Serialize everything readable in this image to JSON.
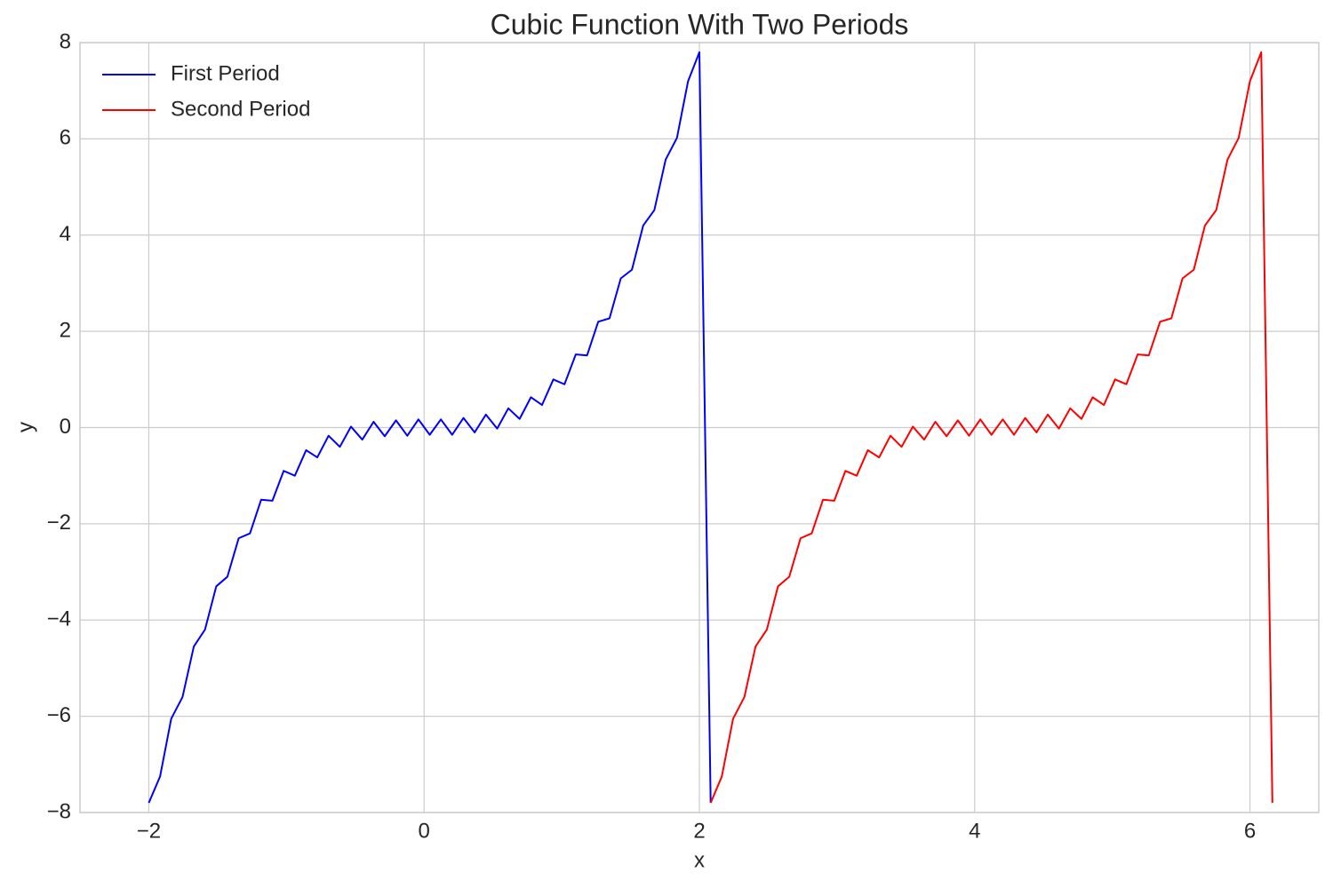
{
  "chart_data": {
    "type": "line",
    "title": "Cubic Function With Two Periods",
    "xlabel": "x",
    "ylabel": "y",
    "xlim": [
      -2.5,
      6.5
    ],
    "xticks": [
      {
        "value": -2,
        "label": "−2"
      },
      0,
      2,
      4,
      6
    ],
    "ylim": [
      -8,
      8
    ],
    "yticks": [
      {
        "value": -8,
        "label": "−8"
      },
      {
        "value": -6,
        "label": "−6"
      },
      {
        "value": -4,
        "label": "−4"
      },
      {
        "value": -2,
        "label": "−2"
      },
      0,
      2,
      4,
      6,
      8
    ],
    "grid": true,
    "legend": "upper left",
    "series": [
      {
        "name": "First Period",
        "color": "#0000ff",
        "x": [
          -2,
          -1.918,
          -1.837,
          -1.755,
          -1.673,
          -1.592,
          -1.51,
          -1.429,
          -1.347,
          -1.265,
          -1.184,
          -1.102,
          -1.02,
          -0.939,
          -0.857,
          -0.776,
          -0.694,
          -0.612,
          -0.531,
          -0.449,
          -0.367,
          -0.286,
          -0.204,
          -0.122,
          -0.041,
          0.041,
          0.122,
          0.204,
          0.286,
          0.367,
          0.449,
          0.531,
          0.612,
          0.694,
          0.776,
          0.857,
          0.939,
          1.02,
          1.102,
          1.184,
          1.265,
          1.347,
          1.429,
          1.51,
          1.592,
          1.673,
          1.755,
          1.837,
          1.918,
          2,
          2.082
        ],
        "values": [
          -7.8,
          -7.25,
          -6.05,
          -5.6,
          -4.55,
          -4.2,
          -3.3,
          -3.1,
          -2.3,
          -2.2,
          -1.5,
          -1.52,
          -0.9,
          -1.0,
          -0.47,
          -0.62,
          -0.17,
          -0.4,
          0.02,
          -0.25,
          0.12,
          -0.18,
          0.15,
          -0.17,
          0.17,
          -0.15,
          0.17,
          -0.15,
          0.2,
          -0.1,
          0.27,
          -0.02,
          0.4,
          0.18,
          0.63,
          0.47,
          1.0,
          0.9,
          1.52,
          1.5,
          2.2,
          2.27,
          3.1,
          3.28,
          4.2,
          4.52,
          5.57,
          6.02,
          7.2,
          7.8,
          -7.8
        ]
      },
      {
        "name": "Second Period",
        "color": "#ff0000",
        "x": [
          2.082,
          2.163,
          2.245,
          2.327,
          2.408,
          2.49,
          2.571,
          2.653,
          2.735,
          2.816,
          2.898,
          2.98,
          3.061,
          3.143,
          3.224,
          3.306,
          3.388,
          3.469,
          3.551,
          3.633,
          3.714,
          3.796,
          3.878,
          3.959,
          4.041,
          4.122,
          4.204,
          4.286,
          4.367,
          4.449,
          4.531,
          4.612,
          4.694,
          4.776,
          4.857,
          4.939,
          5.02,
          5.102,
          5.184,
          5.265,
          5.347,
          5.429,
          5.51,
          5.592,
          5.673,
          5.755,
          5.837,
          5.918,
          6,
          6.082,
          6.163
        ],
        "values": [
          -7.8,
          -7.25,
          -6.05,
          -5.6,
          -4.55,
          -4.2,
          -3.3,
          -3.1,
          -2.3,
          -2.2,
          -1.5,
          -1.52,
          -0.9,
          -1.0,
          -0.47,
          -0.62,
          -0.17,
          -0.4,
          0.02,
          -0.25,
          0.12,
          -0.18,
          0.15,
          -0.17,
          0.17,
          -0.15,
          0.17,
          -0.15,
          0.2,
          -0.1,
          0.27,
          -0.02,
          0.4,
          0.18,
          0.63,
          0.47,
          1.0,
          0.9,
          1.52,
          1.5,
          2.2,
          2.27,
          3.1,
          3.28,
          4.2,
          4.52,
          5.57,
          6.02,
          7.2,
          7.8,
          -7.8
        ]
      }
    ]
  }
}
